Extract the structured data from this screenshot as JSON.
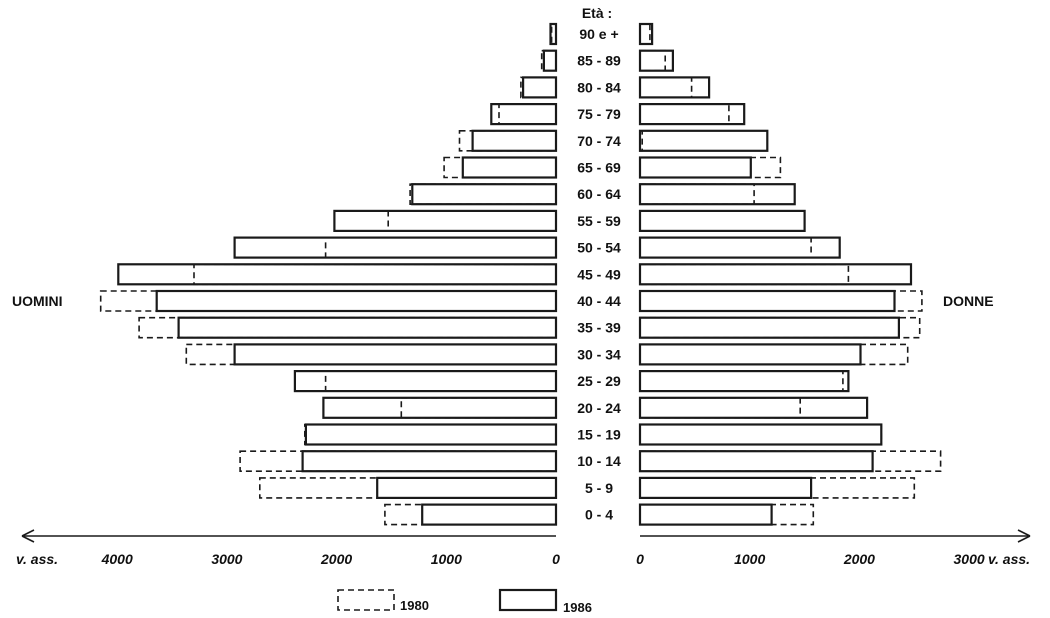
{
  "chart_data": {
    "type": "bar",
    "orientation": "horizontal-pyramid",
    "age_header": "Età :",
    "age_groups": [
      "90 e +",
      "85 - 89",
      "80 - 84",
      "75 - 79",
      "70 - 74",
      "65 - 69",
      "60 - 64",
      "55 - 59",
      "50 - 54",
      "45 - 49",
      "40 - 44",
      "35 - 39",
      "30 - 34",
      "25 - 29",
      "20 - 24",
      "15 - 19",
      "10 - 14",
      "5 - 9",
      "0 - 4"
    ],
    "left_label": "UOMINI",
    "right_label": "DONNE",
    "left_axis_unit": "v. ass.",
    "right_axis_unit": "v. ass.",
    "left_ticks": [
      "4000",
      "3000",
      "2000",
      "1000",
      "0"
    ],
    "right_ticks": [
      "0",
      "1000",
      "2000",
      "3000"
    ],
    "xlim": [
      0,
      4100
    ],
    "series": [
      {
        "name": "1980",
        "style": "dashed",
        "men": [
          40,
          130,
          320,
          520,
          880,
          1020,
          1330,
          1530,
          2100,
          3300,
          4150,
          3800,
          3370,
          2100,
          1410,
          2290,
          2880,
          2700,
          1560
        ],
        "women": [
          90,
          230,
          470,
          810,
          20,
          1280,
          1040,
          1500,
          1560,
          1900,
          2570,
          2550,
          2440,
          1850,
          1460,
          2200,
          2740,
          2500,
          1580
        ]
      },
      {
        "name": "1986",
        "style": "solid",
        "men": [
          50,
          110,
          300,
          590,
          760,
          850,
          1310,
          2020,
          2930,
          3990,
          3640,
          3440,
          2930,
          2380,
          2120,
          2280,
          2310,
          1630,
          1220
        ],
        "women": [
          110,
          300,
          630,
          950,
          1160,
          1010,
          1410,
          1500,
          1820,
          2470,
          2320,
          2360,
          2010,
          1900,
          2070,
          2200,
          2120,
          1560,
          1200
        ]
      }
    ],
    "legend": [
      "1980",
      "1986"
    ],
    "legend_position": "bottom-center"
  }
}
